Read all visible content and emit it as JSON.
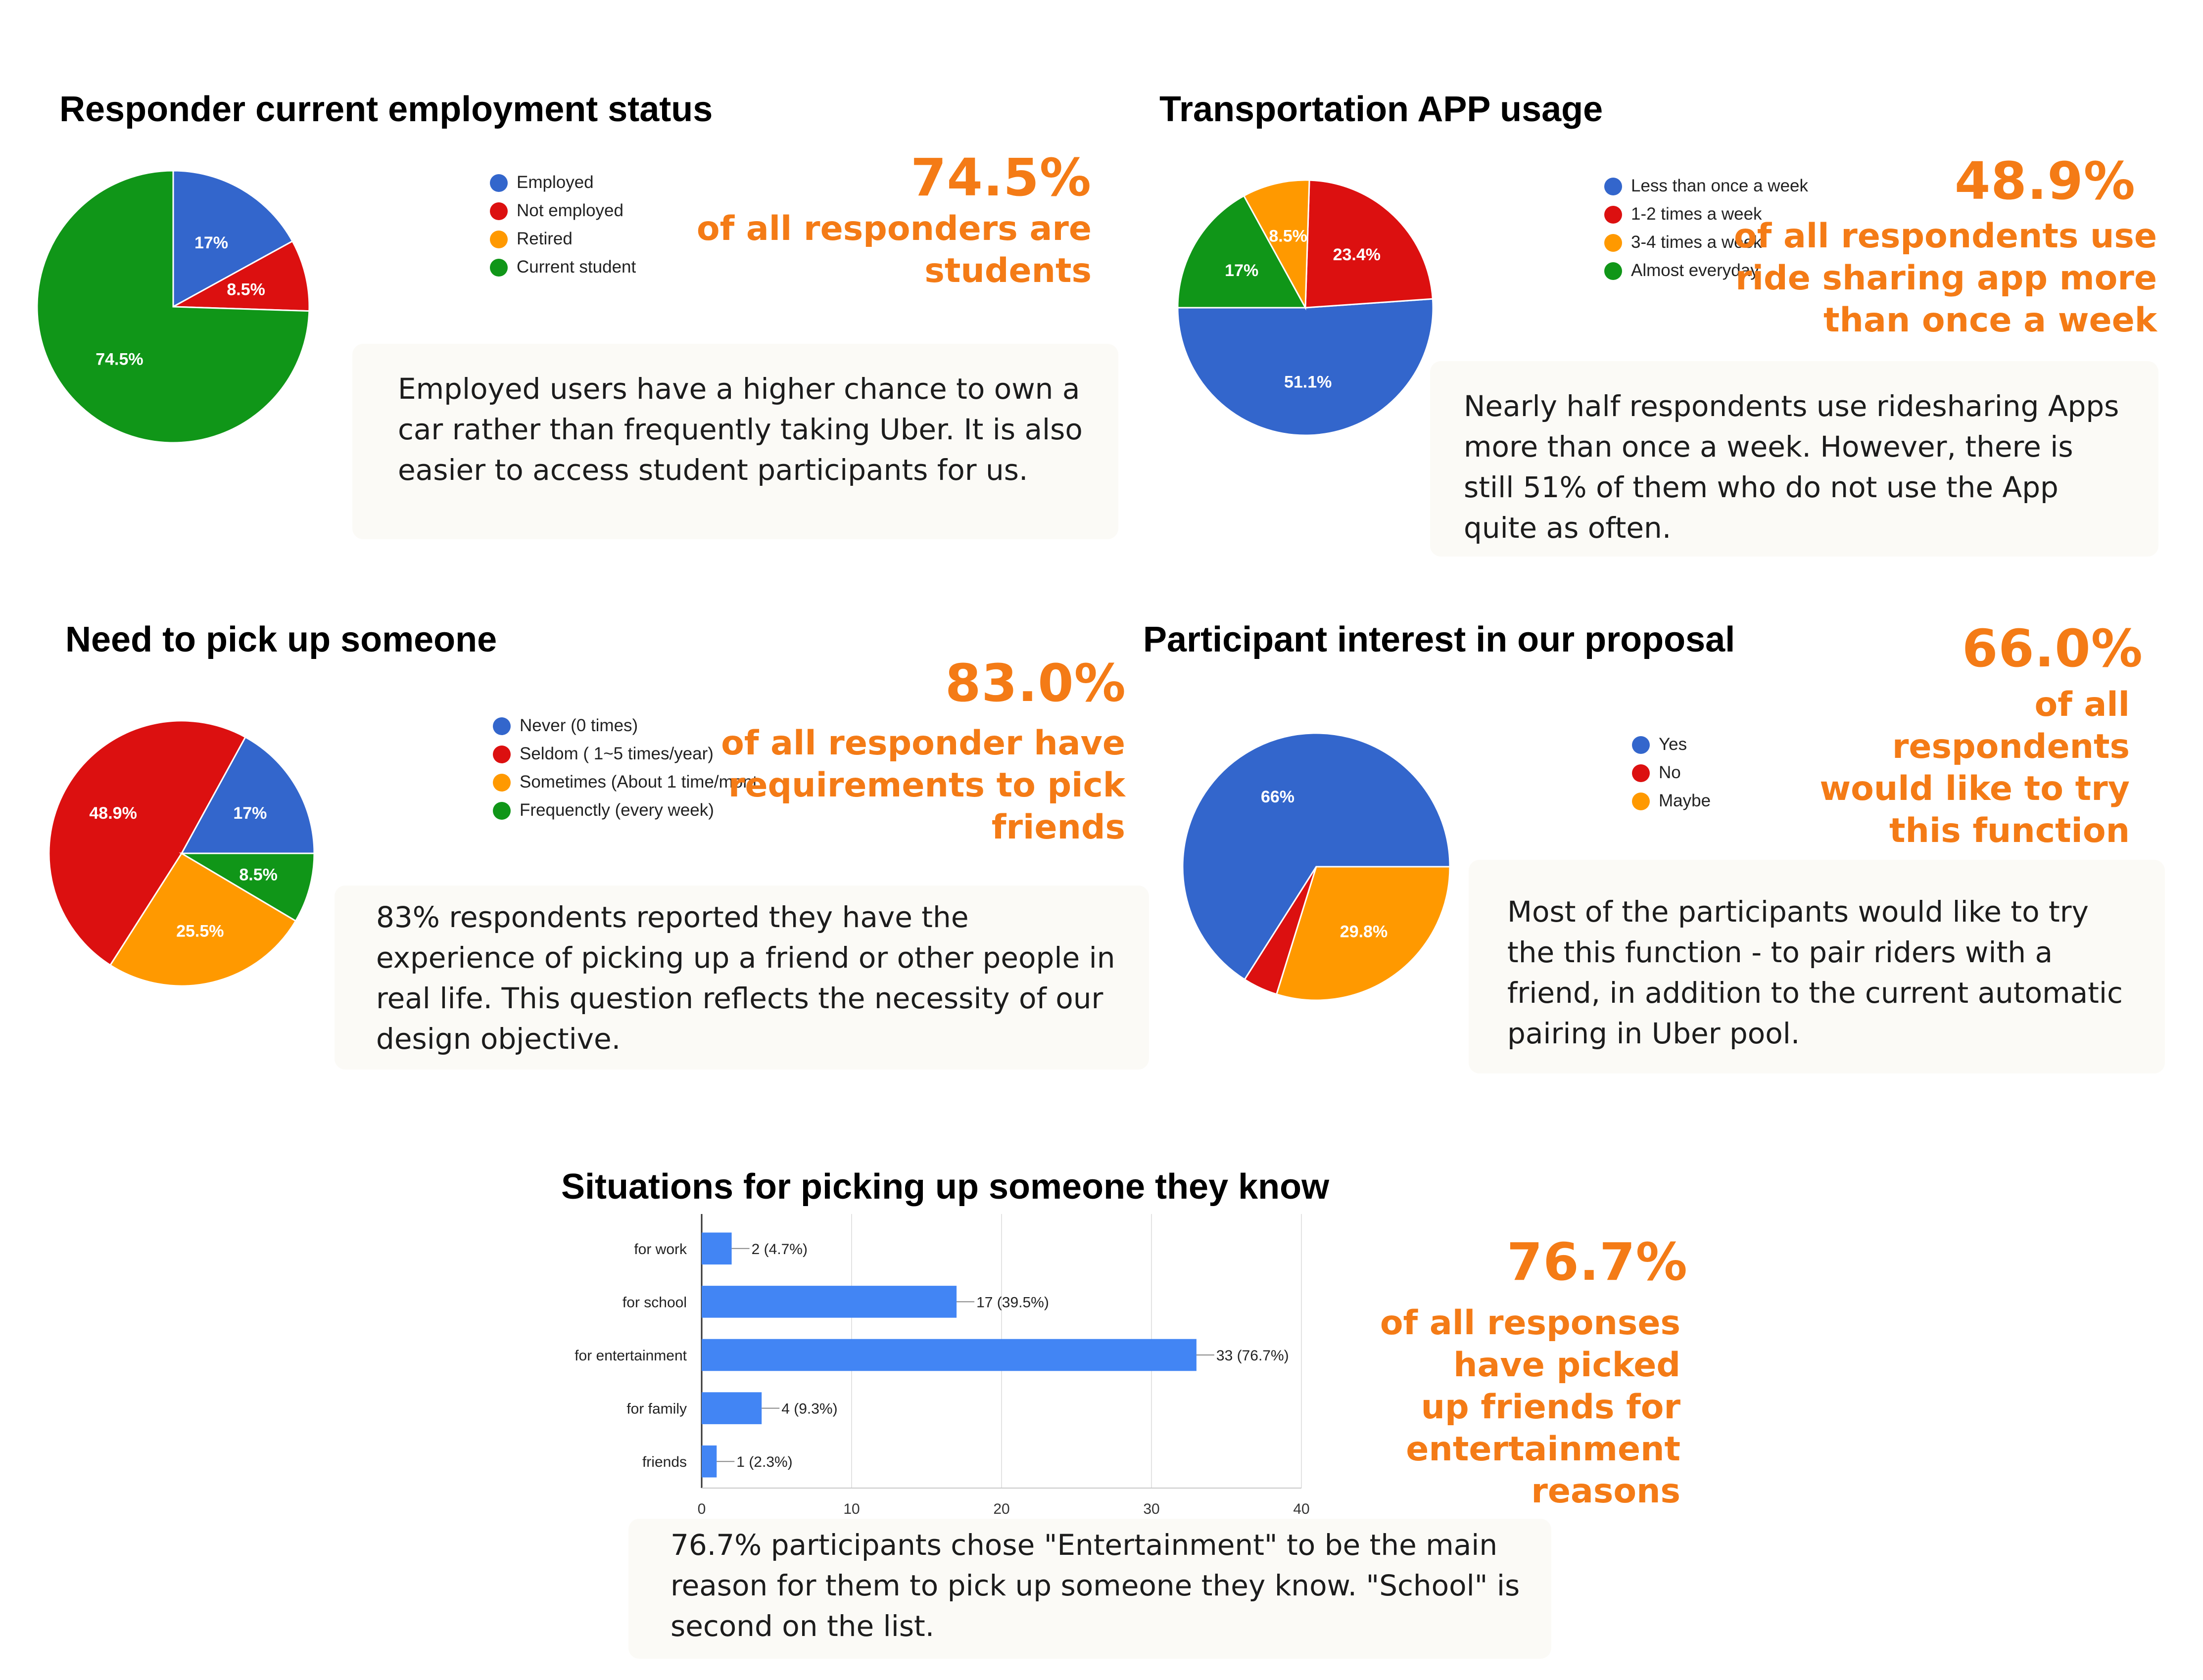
{
  "chart_data": [
    {
      "type": "pie",
      "title": "Responder current employment status",
      "categories": [
        "Employed",
        "Not employed",
        "Retired",
        "Current student"
      ],
      "values": [
        17,
        8.5,
        0,
        74.5
      ],
      "slice_labels": [
        "17%",
        "8.5%",
        "",
        "74.5%"
      ],
      "colors": [
        "#3366cc",
        "#dc1010",
        "#ff9900",
        "#109618"
      ],
      "legend": "right",
      "stat": {
        "value": "74.5%",
        "text": "of all responders are\nstudents"
      },
      "note": "Employed users have a higher chance to own a car rather than frequently taking Uber. It is also easier to access student participants for us."
    },
    {
      "type": "pie",
      "title": "Transportation APP usage",
      "categories": [
        "Less than once a week",
        "1-2 times a week",
        "3-4 times a week",
        "Almost everyday"
      ],
      "values": [
        51.1,
        23.4,
        8.5,
        17
      ],
      "slice_labels": [
        "51.1%",
        "23.4%",
        "8.5%",
        "17%"
      ],
      "colors": [
        "#3366cc",
        "#dc1010",
        "#ff9900",
        "#109618"
      ],
      "legend": "right",
      "stat": {
        "value": "48.9%",
        "text": "of all respondents use\nride sharing app more\nthan once a week"
      },
      "note": "Nearly half respondents use ridesharing Apps more than once a week. However, there is still 51% of them who do not use the App quite as often."
    },
    {
      "type": "pie",
      "title": "Need to pick up someone",
      "categories": [
        "Never (0 times)",
        "Seldom ( 1~5 times/year)",
        "Sometimes (About 1 time/mont",
        "Frequenctly (every week)"
      ],
      "values": [
        17,
        48.9,
        25.5,
        8.5
      ],
      "slice_labels": [
        "17%",
        "48.9%",
        "25.5%",
        "8.5%"
      ],
      "colors": [
        "#3366cc",
        "#dc1010",
        "#ff9900",
        "#109618"
      ],
      "legend": "right",
      "stat": {
        "value": "83.0%",
        "text": "of all responder have\nrequirements to pick\nfriends"
      },
      "note": "83% respondents reported they have the experience of picking up a friend or other people in real life. This question reflects the necessity of our design objective."
    },
    {
      "type": "pie",
      "title": "Participant interest in our proposal",
      "categories": [
        "Yes",
        "No",
        "Maybe"
      ],
      "values": [
        66,
        4.2,
        29.8
      ],
      "slice_labels": [
        "66%",
        "",
        "29.8%"
      ],
      "colors": [
        "#3366cc",
        "#dc1010",
        "#ff9900"
      ],
      "legend": "right",
      "stat": {
        "value": "66.0%",
        "text": "of all\nrespondents\nwould like to try\nthis function"
      },
      "note": "Most of the participants would like to try the this function - to pair riders with a friend, in addition to the current automatic pairing in Uber pool."
    },
    {
      "type": "bar",
      "orientation": "horizontal",
      "title": "Situations for picking up someone they know",
      "categories": [
        "for work",
        "for school",
        "for entertainment",
        "for family",
        "friends"
      ],
      "values": [
        2,
        17,
        33,
        4,
        1
      ],
      "data_labels": [
        "2 (4.7%)",
        "17 (39.5%)",
        "33 (76.7%)",
        "4 (9.3%)",
        "1 (2.3%)"
      ],
      "xlim": [
        0,
        40
      ],
      "xticks": [
        "0",
        "10",
        "20",
        "30",
        "40"
      ],
      "grid": true,
      "color": "#4285f4",
      "stat": {
        "value": "76.7%",
        "text": "of all responses\nhave picked\nup friends for\nentertainment\nreasons"
      },
      "note": "76.7% participants chose \"Entertainment\" to be the main reason for them to pick up someone they know. \"School\" is second on the list."
    }
  ]
}
